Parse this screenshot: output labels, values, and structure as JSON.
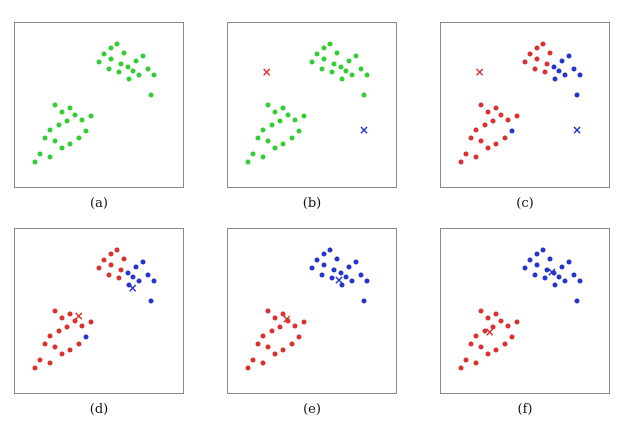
{
  "palette": {
    "g": "#33cc33",
    "r": "#d93030",
    "b": "#2534cc",
    "red": "#d93030",
    "blue": "#2534cc"
  },
  "chart_data": {
    "type": "scatter",
    "title": "",
    "description": "Six-panel scatter figure (a)-(f) showing k-means clustering iterations on 36 two-dimensional points forming two clusters; x markers are the red and blue cluster centroids",
    "marker_glyph": "×",
    "x_range": [
      0,
      1
    ],
    "y_range": [
      0,
      1
    ],
    "grid": false,
    "legend": false,
    "points": [
      [
        0.5,
        0.24
      ],
      [
        0.53,
        0.19
      ],
      [
        0.57,
        0.15
      ],
      [
        0.61,
        0.13
      ],
      [
        0.65,
        0.18
      ],
      [
        0.57,
        0.22
      ],
      [
        0.63,
        0.25
      ],
      [
        0.67,
        0.27
      ],
      [
        0.7,
        0.29
      ],
      [
        0.72,
        0.23
      ],
      [
        0.76,
        0.2
      ],
      [
        0.79,
        0.28
      ],
      [
        0.83,
        0.32
      ],
      [
        0.74,
        0.32
      ],
      [
        0.68,
        0.34
      ],
      [
        0.62,
        0.3
      ],
      [
        0.81,
        0.44
      ],
      [
        0.56,
        0.28
      ],
      [
        0.24,
        0.5
      ],
      [
        0.28,
        0.54
      ],
      [
        0.33,
        0.52
      ],
      [
        0.36,
        0.56
      ],
      [
        0.4,
        0.59
      ],
      [
        0.31,
        0.6
      ],
      [
        0.26,
        0.62
      ],
      [
        0.21,
        0.65
      ],
      [
        0.18,
        0.7
      ],
      [
        0.24,
        0.72
      ],
      [
        0.28,
        0.76
      ],
      [
        0.33,
        0.74
      ],
      [
        0.38,
        0.7
      ],
      [
        0.42,
        0.66
      ],
      [
        0.15,
        0.8
      ],
      [
        0.12,
        0.85
      ],
      [
        0.21,
        0.82
      ],
      [
        0.45,
        0.57
      ]
    ],
    "panels": [
      {
        "id": "a",
        "label": "(a)",
        "colors": "gggggggggggggggggggggggggggggggggggg",
        "centroids": []
      },
      {
        "id": "b",
        "label": "(b)",
        "colors": "gggggggggggggggggggggggggggggggggggg",
        "centroids": [
          {
            "color": "red",
            "x": 0.23,
            "y": 0.3
          },
          {
            "color": "blue",
            "x": 0.81,
            "y": 0.65
          }
        ]
      },
      {
        "id": "c",
        "label": "(c)",
        "colors": "rrrrrrrbbbbbbbbrbrrrrrrrrrrrrrrbrrrr",
        "centroids": [
          {
            "color": "red",
            "x": 0.23,
            "y": 0.3
          },
          {
            "color": "blue",
            "x": 0.81,
            "y": 0.65
          }
        ]
      },
      {
        "id": "d",
        "label": "(d)",
        "colors": "rrrrrrrbbbbbbbbrbrrrrrrrrrrrrrrbrrrr",
        "centroids": [
          {
            "color": "red",
            "x": 0.38,
            "y": 0.53
          },
          {
            "color": "blue",
            "x": 0.7,
            "y": 0.36
          }
        ]
      },
      {
        "id": "e",
        "label": "(e)",
        "colors": "bbbbbbbbbbbbbbbbbbrrrrrrrrrrrrrrrrrr",
        "centroids": [
          {
            "color": "red",
            "x": 0.35,
            "y": 0.55
          },
          {
            "color": "blue",
            "x": 0.66,
            "y": 0.31
          }
        ]
      },
      {
        "id": "f",
        "label": "(f)",
        "colors": "bbbbbbbbbbbbbbbbbbrrrrrrrrrrrrrrrrrr",
        "centroids": [
          {
            "color": "red",
            "x": 0.29,
            "y": 0.63
          },
          {
            "color": "blue",
            "x": 0.66,
            "y": 0.26
          }
        ]
      }
    ]
  }
}
